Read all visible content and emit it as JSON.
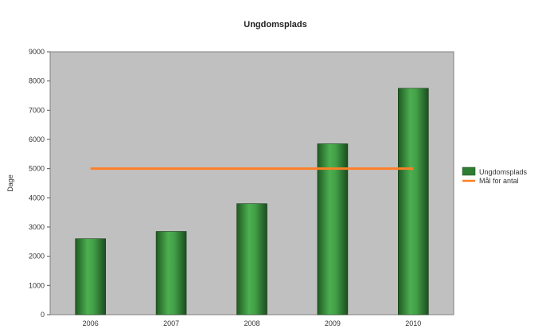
{
  "chart_data": {
    "type": "bar",
    "title": "Ungdomsplads",
    "xlabel": "",
    "ylabel": "Dage",
    "categories": [
      "2006",
      "2007",
      "2008",
      "2009",
      "2010"
    ],
    "series": [
      {
        "name": "Ungdomsplads",
        "type": "bar",
        "values": [
          2600,
          2850,
          3800,
          5850,
          7750
        ],
        "color": "#2e7d32"
      },
      {
        "name": "Mål for antal",
        "type": "line",
        "values": [
          5000,
          5000,
          5000,
          5000,
          5000
        ],
        "color": "#ff7f27"
      }
    ],
    "ylim": [
      0,
      9000
    ],
    "yticks": [
      "0",
      "1000",
      "2000",
      "3000",
      "4000",
      "5000",
      "6000",
      "7000",
      "8000",
      "9000"
    ],
    "grid": false,
    "plot_background": "#c0c0c0",
    "legend_position": "right"
  }
}
